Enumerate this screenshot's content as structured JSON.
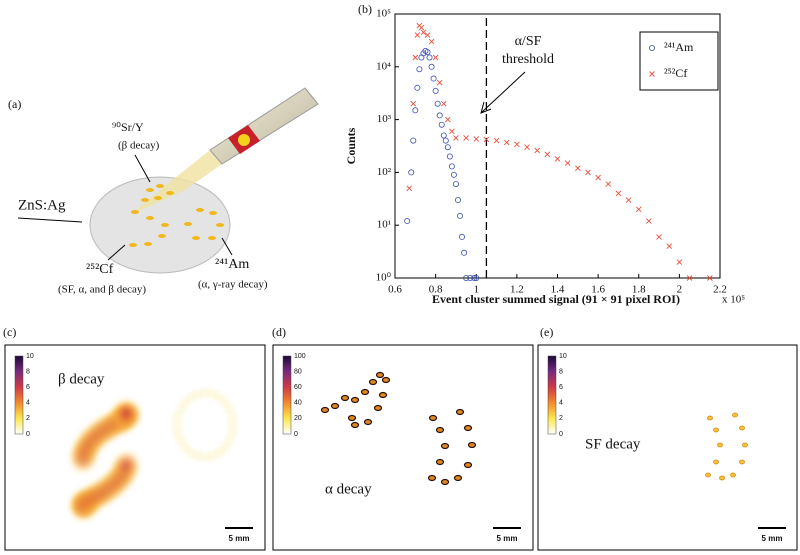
{
  "panels": {
    "a": {
      "label": "(a)",
      "sr": "⁹⁰Sr/Y",
      "sr_decay": "(β decay)",
      "screen": "ZnS:Ag",
      "cf": "²⁵²Cf",
      "cf_decay": "(SF, α, and β decay)",
      "am": "²⁴¹Am",
      "am_decay": "(α, γ-ray decay)"
    },
    "c": {
      "label": "(c)",
      "title": "β decay",
      "colorbar_ticks": [
        0,
        2,
        4,
        6,
        8,
        10
      ],
      "scale": "5 mm"
    },
    "d": {
      "label": "(d)",
      "title": "α decay",
      "colorbar_ticks": [
        0,
        20,
        40,
        60,
        80,
        100
      ],
      "scale": "5 mm"
    },
    "e": {
      "label": "(e)",
      "title": "SF decay",
      "colorbar_ticks": [
        0,
        2,
        4,
        6,
        8,
        10
      ],
      "scale": "5 mm"
    }
  },
  "chart_data": {
    "type": "scatter",
    "panel_label": "(b)",
    "x_label": "Event cluster summed signal (91 × 91 pixel ROI)",
    "x_multiplier": "x 10⁵",
    "y_label": "Counts",
    "annotation": "α/SF",
    "annotation2": "threshold",
    "threshold_x": 1.05,
    "xlim": [
      0.6,
      2.2
    ],
    "xticks": [
      0.6,
      0.8,
      1,
      1.2,
      1.4,
      1.6,
      1.8,
      2,
      2.2
    ],
    "ylim": [
      1,
      100000
    ],
    "y_scale": "log",
    "yticks": [
      {
        "value": 1,
        "label": "10⁰"
      },
      {
        "value": 10,
        "label": "10¹"
      },
      {
        "value": 100,
        "label": "10²"
      },
      {
        "value": 1000,
        "label": "10³"
      },
      {
        "value": 10000,
        "label": "10⁴"
      },
      {
        "value": 100000,
        "label": "10⁵"
      }
    ],
    "legend": "upper right",
    "series": [
      {
        "name": "²⁴¹Am",
        "color": "#3b50b0",
        "marker": "circle",
        "x": [
          0.66,
          0.68,
          0.69,
          0.7,
          0.71,
          0.72,
          0.73,
          0.74,
          0.75,
          0.76,
          0.77,
          0.78,
          0.79,
          0.8,
          0.81,
          0.82,
          0.83,
          0.84,
          0.85,
          0.86,
          0.87,
          0.88,
          0.89,
          0.9,
          0.91,
          0.92,
          0.93,
          0.94,
          0.95,
          0.97,
          0.99,
          1.0
        ],
        "values": [
          12,
          100,
          400,
          1500,
          4000,
          9000,
          15000,
          18000,
          20000,
          19000,
          15000,
          10000,
          6000,
          3500,
          2000,
          1200,
          800,
          500,
          400,
          300,
          200,
          130,
          90,
          60,
          30,
          15,
          6,
          3,
          1,
          1,
          1,
          1
        ]
      },
      {
        "name": "²⁵²Cf",
        "color": "#e8503c",
        "marker": "cross",
        "x": [
          0.67,
          0.69,
          0.7,
          0.71,
          0.72,
          0.73,
          0.74,
          0.76,
          0.78,
          0.8,
          0.82,
          0.84,
          0.86,
          0.88,
          0.9,
          0.95,
          1.0,
          1.05,
          1.1,
          1.15,
          1.2,
          1.25,
          1.3,
          1.35,
          1.4,
          1.45,
          1.5,
          1.55,
          1.6,
          1.65,
          1.7,
          1.75,
          1.8,
          1.85,
          1.9,
          1.95,
          2.0,
          2.05,
          2.15
        ],
        "values": [
          50,
          2000,
          15000,
          40000,
          60000,
          55000,
          45000,
          40000,
          30000,
          15000,
          5000,
          2000,
          1000,
          600,
          450,
          450,
          430,
          420,
          400,
          370,
          340,
          300,
          260,
          220,
          180,
          150,
          120,
          100,
          80,
          60,
          40,
          30,
          20,
          12,
          6,
          4,
          2,
          1,
          1
        ]
      }
    ]
  }
}
